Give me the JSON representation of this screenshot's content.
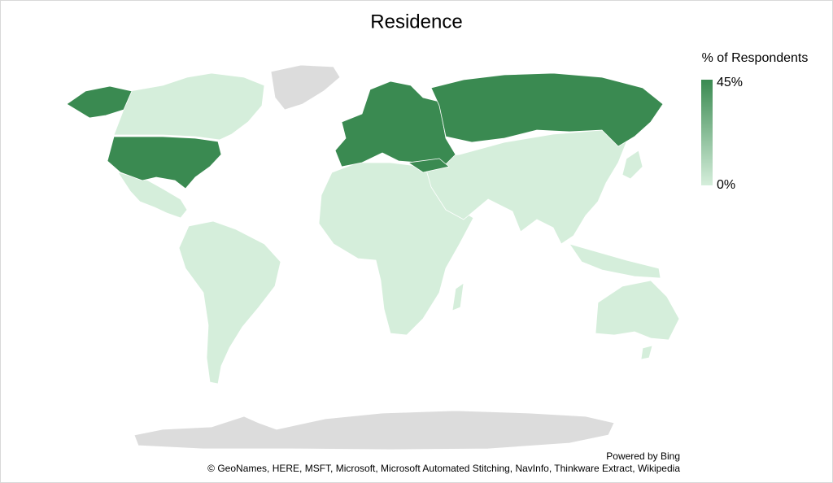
{
  "chart_data": {
    "type": "map",
    "title": "Residence",
    "legend_title": "% of Respondents",
    "scale": {
      "min": {
        "value": 0,
        "label": "0%"
      },
      "max": {
        "value": 45,
        "label": "45%"
      }
    },
    "low_color": "#d5eedb",
    "high_color": "#3a8a51",
    "no_data_color": "#dcdcdc",
    "attribution": {
      "powered_by": "Powered by Bing",
      "credits": "© GeoNames, HERE, MSFT, Microsoft, Microsoft Automated Stitching, NavInfo, Thinkware Extract, Wikipedia"
    }
  }
}
